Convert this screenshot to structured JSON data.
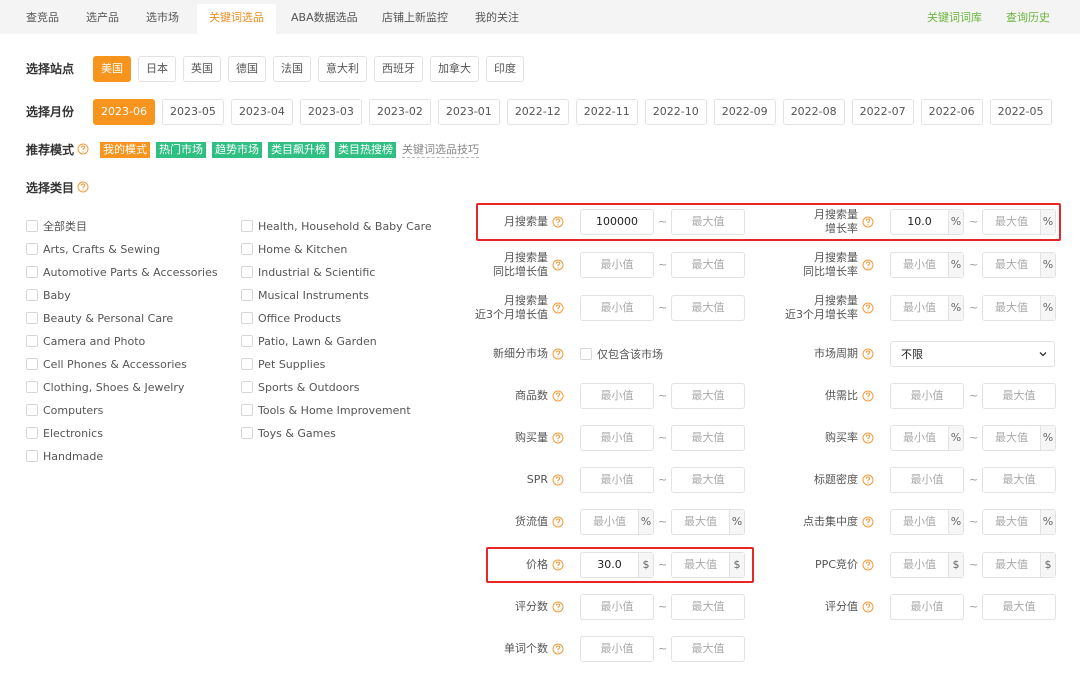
{
  "tabs": {
    "items": [
      "查竞品",
      "选产品",
      "选市场",
      "关键词选品",
      "ABA数据选品",
      "店铺上新监控",
      "我的关注"
    ],
    "active": 3,
    "links": [
      "关键词词库",
      "查询历史"
    ]
  },
  "site": {
    "label": "选择站点",
    "options": [
      "美国",
      "日本",
      "英国",
      "德国",
      "法国",
      "意大利",
      "西班牙",
      "加拿大",
      "印度"
    ],
    "active": 0
  },
  "month": {
    "label": "选择月份",
    "options": [
      "2023-06",
      "2023-05",
      "2023-04",
      "2023-03",
      "2023-02",
      "2023-01",
      "2022-12",
      "2022-11",
      "2022-10",
      "2022-09",
      "2022-08",
      "2022-07",
      "2022-06",
      "2022-05"
    ],
    "active": 0
  },
  "mode": {
    "label": "推荐模式",
    "tags": [
      "我的模式",
      "热门市场",
      "趋势市场",
      "类目飙升榜",
      "类目热搜榜"
    ],
    "link": "关键词选品技巧"
  },
  "category": {
    "label": "选择类目",
    "columns": [
      [
        "全部类目",
        "Arts, Crafts & Sewing",
        "Automotive Parts & Accessories",
        "Baby",
        "Beauty & Personal Care",
        "Camera and Photo",
        "Cell Phones & Accessories",
        "Clothing, Shoes & Jewelry",
        "Computers",
        "Electronics",
        "Handmade"
      ],
      [
        "Health, Household & Baby Care",
        "Home & Kitchen",
        "Industrial & Scientific",
        "Musical Instruments",
        "Office Products",
        "Patio, Lawn & Garden",
        "Pet Supplies",
        "Sports & Outdoors",
        "Tools & Home Improvement",
        "Toys & Games"
      ]
    ]
  },
  "filters": {
    "min_placeholder": "最小值",
    "max_placeholder": "最大值",
    "separator": "~",
    "rows": [
      {
        "left": {
          "label": [
            "月搜索量"
          ],
          "min": "100000",
          "highlight": true
        },
        "right": {
          "label": [
            "月搜索量",
            "增长率"
          ],
          "unit": "%",
          "min": "10.0",
          "highlight": true
        }
      },
      {
        "left": {
          "label": [
            "月搜索量",
            "同比增长值"
          ]
        },
        "right": {
          "label": [
            "月搜索量",
            "同比增长率"
          ],
          "unit": "%"
        }
      },
      {
        "left": {
          "label": [
            "月搜索量",
            "近3个月增长值"
          ]
        },
        "right": {
          "label": [
            "月搜索量",
            "近3个月增长率"
          ],
          "unit": "%"
        }
      },
      {
        "left": {
          "label": [
            "新细分市场"
          ],
          "type": "checkbox",
          "option": "仅包含该市场"
        },
        "right": {
          "label": [
            "市场周期"
          ],
          "type": "select",
          "value": "不限"
        }
      },
      {
        "left": {
          "label": [
            "商品数"
          ]
        },
        "right": {
          "label": [
            "供需比"
          ]
        }
      },
      {
        "left": {
          "label": [
            "购买量"
          ]
        },
        "right": {
          "label": [
            "购买率"
          ],
          "unit": "%"
        }
      },
      {
        "left": {
          "label": [
            "SPR"
          ]
        },
        "right": {
          "label": [
            "标题密度"
          ]
        }
      },
      {
        "left": {
          "label": [
            "货流值"
          ],
          "unit": "%"
        },
        "right": {
          "label": [
            "点击集中度"
          ],
          "unit": "%"
        }
      },
      {
        "left": {
          "label": [
            "价格"
          ],
          "unit": "$",
          "min": "30.0",
          "highlight": true
        },
        "right": {
          "label": [
            "PPC竞价"
          ],
          "unit": "$"
        }
      },
      {
        "left": {
          "label": [
            "评分数"
          ]
        },
        "right": {
          "label": [
            "评分值"
          ]
        }
      },
      {
        "left": {
          "label": [
            "单词个数"
          ]
        }
      }
    ]
  }
}
